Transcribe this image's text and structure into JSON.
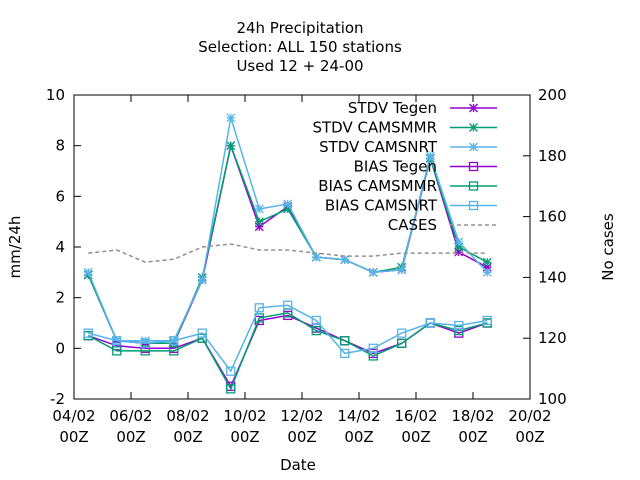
{
  "chart_data": {
    "type": "line",
    "title_lines": [
      "24h Precipitation",
      "Selection: ALL    150 stations",
      "Used  12 + 24-00"
    ],
    "xlabel": "Date",
    "ylabel": "mm/24h",
    "y2label": "No cases",
    "xlim": [
      0,
      16
    ],
    "ylim": [
      -2,
      10
    ],
    "y2lim": [
      100,
      200
    ],
    "x_ticks": [
      {
        "x": 0,
        "line1": "04/02",
        "line2": "00Z"
      },
      {
        "x": 2,
        "line1": "06/02",
        "line2": "00Z"
      },
      {
        "x": 4,
        "line1": "08/02",
        "line2": "00Z"
      },
      {
        "x": 6,
        "line1": "10/02",
        "line2": "00Z"
      },
      {
        "x": 8,
        "line1": "12/02",
        "line2": "00Z"
      },
      {
        "x": 10,
        "line1": "14/02",
        "line2": "00Z"
      },
      {
        "x": 12,
        "line1": "16/02",
        "line2": "00Z"
      },
      {
        "x": 14,
        "line1": "18/02",
        "line2": "00Z"
      },
      {
        "x": 16,
        "line1": "20/02",
        "line2": "00Z"
      }
    ],
    "y_ticks": [
      "10",
      "8",
      "6",
      "4",
      "2",
      "0",
      "-2"
    ],
    "y2_ticks": [
      "200",
      "180",
      "160",
      "140",
      "120",
      "100"
    ],
    "x": [
      0.5,
      1.5,
      2.5,
      3.5,
      4.5,
      5.5,
      6.5,
      7.5,
      8.5,
      9.5,
      10.5,
      11.5,
      12.5,
      13.5,
      14.5
    ],
    "series": [
      {
        "name": "STDV Tegen",
        "axis": "y1",
        "color": "#9400D3",
        "marker": "star",
        "dashed": false,
        "values": [
          2.9,
          0.3,
          0.2,
          0.2,
          2.7,
          8.0,
          4.8,
          5.6,
          3.6,
          3.5,
          3.0,
          3.1,
          7.5,
          3.8,
          3.2
        ]
      },
      {
        "name": "STDV CAMSMMR",
        "axis": "y1",
        "color": "#009E73",
        "marker": "star",
        "dashed": false,
        "values": [
          2.9,
          0.3,
          0.2,
          0.2,
          2.8,
          8.0,
          5.0,
          5.5,
          3.6,
          3.5,
          3.0,
          3.2,
          7.5,
          4.0,
          3.4
        ]
      },
      {
        "name": "STDV CAMSNRT",
        "axis": "y1",
        "color": "#56B4E9",
        "marker": "star",
        "dashed": false,
        "values": [
          3.0,
          0.3,
          0.3,
          0.3,
          2.7,
          9.1,
          5.5,
          5.7,
          3.6,
          3.5,
          3.0,
          3.1,
          7.6,
          4.2,
          3.0
        ]
      },
      {
        "name": "BIAS Tegen",
        "axis": "y1",
        "color": "#9400D3",
        "marker": "square",
        "dashed": false,
        "values": [
          0.5,
          0.1,
          0.0,
          0.0,
          0.4,
          -1.5,
          1.1,
          1.3,
          0.8,
          0.3,
          -0.2,
          0.2,
          1.0,
          0.6,
          1.0
        ]
      },
      {
        "name": "BIAS CAMSMMR",
        "axis": "y1",
        "color": "#009E73",
        "marker": "square",
        "dashed": false,
        "values": [
          0.5,
          -0.1,
          -0.1,
          -0.1,
          0.4,
          -1.6,
          1.2,
          1.4,
          0.7,
          0.3,
          -0.3,
          0.2,
          1.0,
          0.7,
          1.0
        ]
      },
      {
        "name": "BIAS CAMSNRT",
        "axis": "y1",
        "color": "#56B4E9",
        "marker": "square",
        "dashed": false,
        "values": [
          0.6,
          0.3,
          0.2,
          0.3,
          0.6,
          -0.9,
          1.6,
          1.7,
          1.1,
          -0.2,
          0.0,
          0.6,
          1.0,
          0.9,
          1.1
        ]
      },
      {
        "name": "CASES",
        "axis": "y2",
        "color": "#909090",
        "marker": "none",
        "dashed": true,
        "x": [
          0.5,
          1.5,
          2.5,
          3.5,
          4.5,
          5.5,
          6.5,
          7.5,
          8.5,
          9.5,
          10.5,
          11.5,
          12.5,
          13.5,
          14.5
        ],
        "values": [
          148,
          149,
          145,
          146,
          150,
          151,
          149,
          149,
          148,
          147,
          147,
          148,
          148,
          148,
          148
        ]
      }
    ],
    "legend_position": "top-right",
    "grid": false
  }
}
